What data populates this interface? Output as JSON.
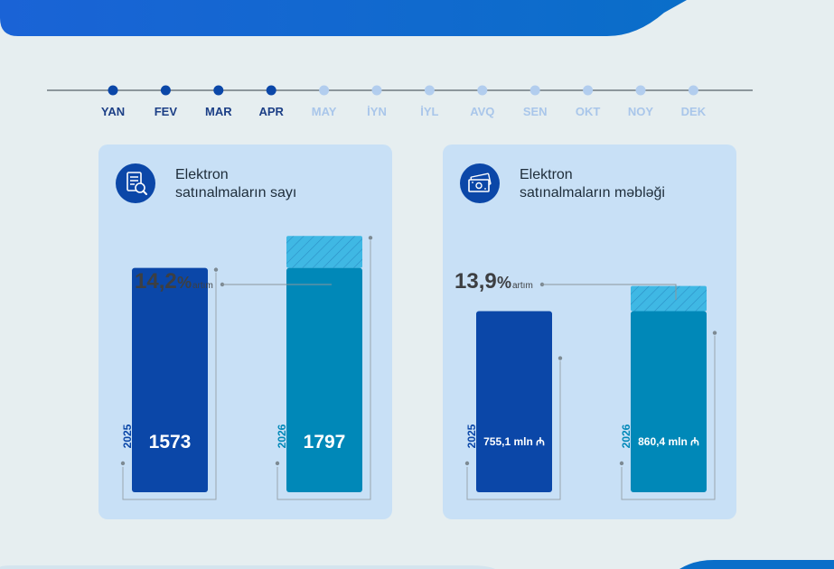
{
  "timeline": {
    "months": [
      "YAN",
      "FEV",
      "MAR",
      "APR",
      "MAY",
      "İYN",
      "İYL",
      "AVQ",
      "SEN",
      "OKT",
      "NOY",
      "DEK"
    ],
    "active_count": 4,
    "colors": {
      "active_dot": "#0b47a8",
      "active_text": "#1c3f86",
      "inactive_dot": "#b2cdee",
      "inactive_text": "#a9c6ea",
      "line": "#8c969c"
    }
  },
  "cards": [
    {
      "icon": "document-search-icon",
      "title_line1": "Elektron",
      "title_line2": "satınalmaların sayı",
      "chart_data": {
        "type": "bar",
        "categories": [
          "2025",
          "2026"
        ],
        "values": [
          1573,
          1797
        ],
        "value_labels": [
          "1573",
          "1797"
        ],
        "increase_value": "14,2",
        "increase_unit": "%",
        "increase_word": "artım",
        "ylim": [
          0,
          1900
        ]
      }
    },
    {
      "icon": "banknotes-icon",
      "title_line1": "Elektron",
      "title_line2": "satınalmaların məbləği",
      "chart_data": {
        "type": "bar",
        "categories": [
          "2025",
          "2026"
        ],
        "values": [
          755.1,
          860.4
        ],
        "value_labels": [
          "755,1 mln ₼",
          "860,4 mln ₼"
        ],
        "increase_value": "13,9",
        "increase_unit": "%",
        "increase_word": "artım",
        "ylim": [
          0,
          1130
        ]
      }
    }
  ],
  "colors": {
    "bar_2025": "#0b47a8",
    "bar_2026": "#0088b8",
    "increase_fill": "#3fb8e4",
    "year_2026_text": "#0088b8",
    "leader": "#7d8a93"
  }
}
